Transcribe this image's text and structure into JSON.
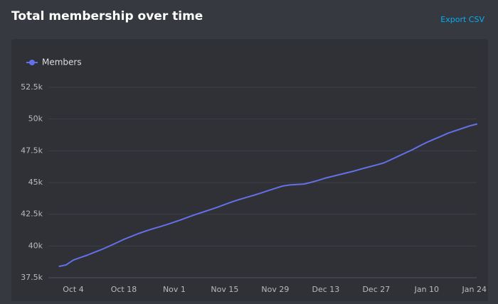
{
  "chart_data": {
    "type": "line",
    "title": "Total membership over time",
    "x": [
      "Sep 30",
      "Oct 2",
      "Oct 4",
      "Oct 6",
      "Oct 8",
      "Oct 10",
      "Oct 12",
      "Oct 14",
      "Oct 16",
      "Oct 18",
      "Oct 20",
      "Oct 22",
      "Oct 24",
      "Oct 26",
      "Oct 28",
      "Oct 30",
      "Nov 1",
      "Nov 3",
      "Nov 5",
      "Nov 7",
      "Nov 9",
      "Nov 11",
      "Nov 13",
      "Nov 15",
      "Nov 17",
      "Nov 19",
      "Nov 21",
      "Nov 23",
      "Nov 25",
      "Nov 27",
      "Nov 29",
      "Dec 1",
      "Dec 3",
      "Dec 5",
      "Dec 7",
      "Dec 9",
      "Dec 11",
      "Dec 13",
      "Dec 15",
      "Dec 17",
      "Dec 19",
      "Dec 21",
      "Dec 23",
      "Dec 25",
      "Dec 27",
      "Dec 29",
      "Dec 31",
      "Jan 2",
      "Jan 4",
      "Jan 6",
      "Jan 8",
      "Jan 10",
      "Jan 12",
      "Jan 14",
      "Jan 16",
      "Jan 18",
      "Jan 20",
      "Jan 22",
      "Jan 24"
    ],
    "series": [
      {
        "name": "Members",
        "color": "#6470e8",
        "values": [
          38390,
          38510,
          38890,
          39090,
          39290,
          39520,
          39740,
          39990,
          40250,
          40520,
          40740,
          40970,
          41170,
          41350,
          41520,
          41690,
          41880,
          42080,
          42290,
          42490,
          42680,
          42860,
          43060,
          43270,
          43480,
          43660,
          43830,
          43990,
          44170,
          44360,
          44540,
          44720,
          44810,
          44850,
          44880,
          45020,
          45180,
          45360,
          45500,
          45640,
          45780,
          45920,
          46080,
          46230,
          46380,
          46540,
          46790,
          47060,
          47320,
          47580,
          47880,
          48160,
          48410,
          48650,
          48900,
          49090,
          49280,
          49470,
          49620
        ]
      }
    ],
    "xticks": [
      "Oct 4",
      "Oct 18",
      "Nov 1",
      "Nov 15",
      "Nov 29",
      "Dec 13",
      "Dec 27",
      "Jan 10",
      "Jan 24"
    ],
    "ylim": [
      37500,
      52500
    ],
    "yticks": [
      {
        "value": 37500,
        "label": "37.5k"
      },
      {
        "value": 40000,
        "label": "40k"
      },
      {
        "value": 42500,
        "label": "42.5k"
      },
      {
        "value": 45000,
        "label": "45k"
      },
      {
        "value": 47500,
        "label": "47.5k"
      },
      {
        "value": 50000,
        "label": "50k"
      },
      {
        "value": 52500,
        "label": "52.5k"
      }
    ],
    "grid": true,
    "legend": "top-left"
  },
  "export_label": "Export CSV"
}
